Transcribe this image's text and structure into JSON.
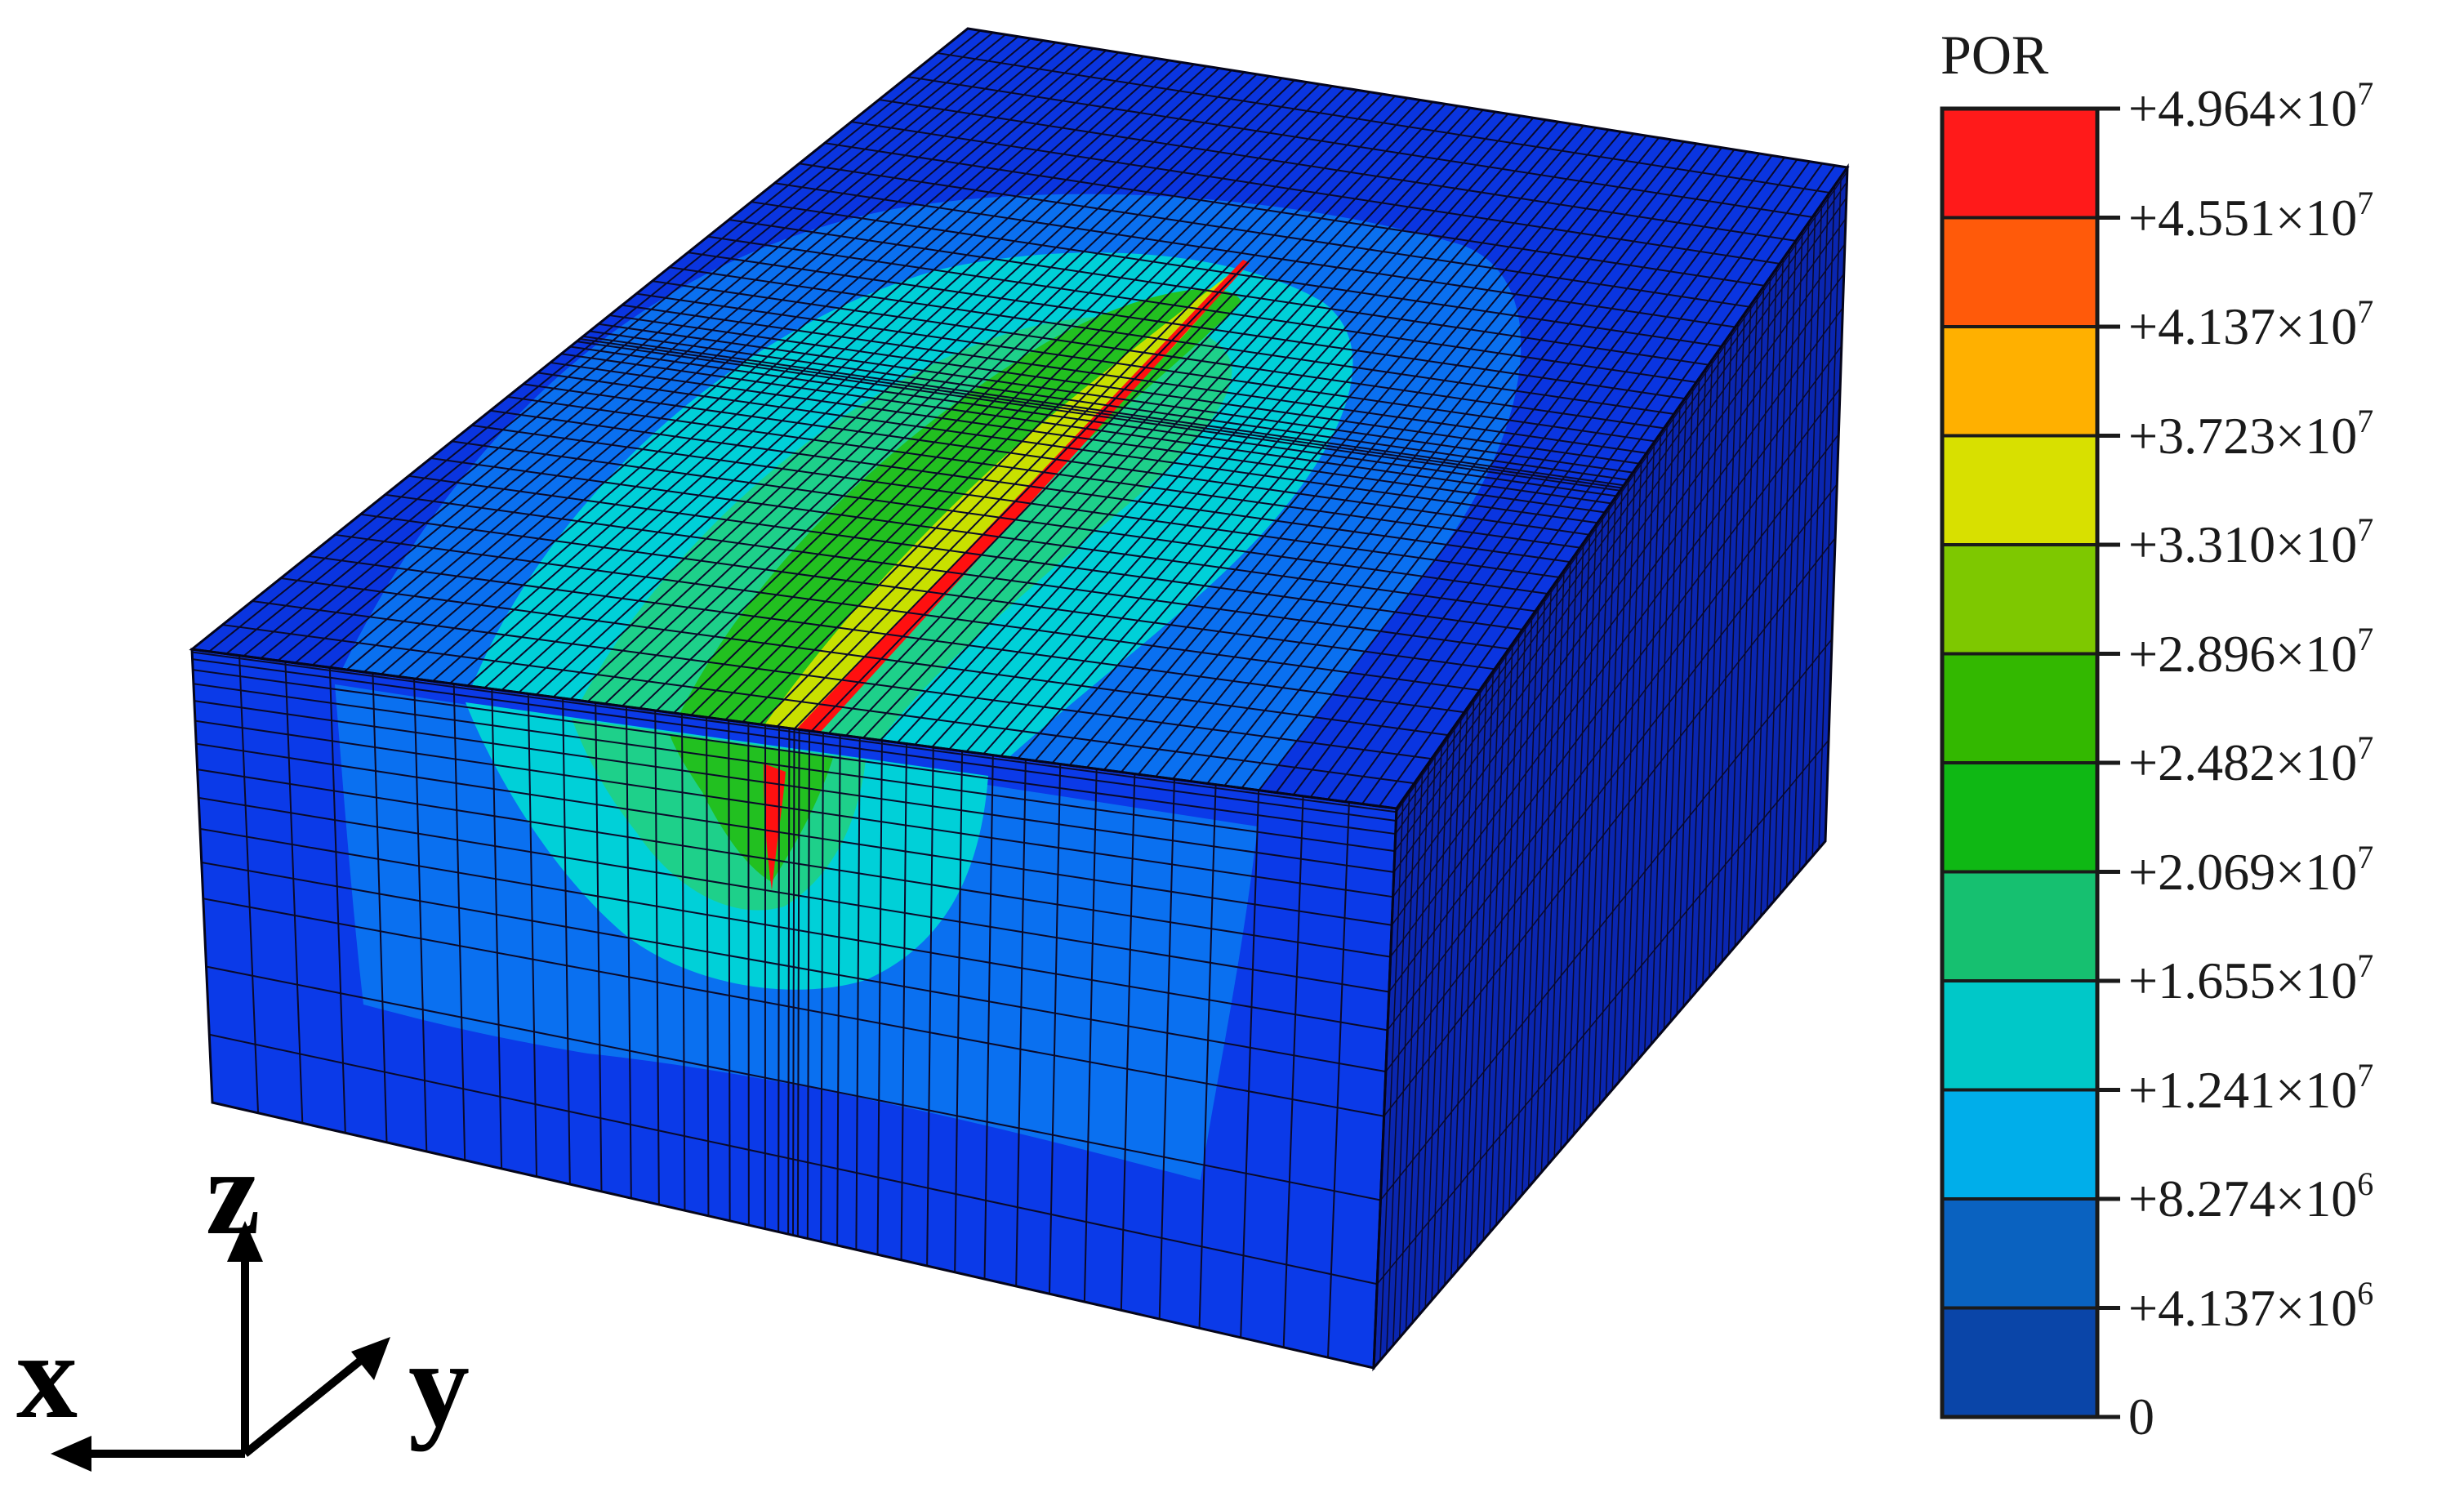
{
  "legend": {
    "title": "POR",
    "entries": [
      {
        "mantissa": "+4.964",
        "times": "×10",
        "exp": "7"
      },
      {
        "mantissa": "+4.551",
        "times": "×10",
        "exp": "7"
      },
      {
        "mantissa": "+4.137",
        "times": "×10",
        "exp": "7"
      },
      {
        "mantissa": "+3.723",
        "times": "×10",
        "exp": "7"
      },
      {
        "mantissa": "+3.310",
        "times": "×10",
        "exp": "7"
      },
      {
        "mantissa": "+2.896",
        "times": "×10",
        "exp": "7"
      },
      {
        "mantissa": "+2.482",
        "times": "×10",
        "exp": "7"
      },
      {
        "mantissa": "+2.069",
        "times": "×10",
        "exp": "7"
      },
      {
        "mantissa": "+1.655",
        "times": "×10",
        "exp": "7"
      },
      {
        "mantissa": "+1.241",
        "times": "×10",
        "exp": "7"
      },
      {
        "mantissa": "+8.274",
        "times": "×10",
        "exp": "6"
      },
      {
        "mantissa": "+4.137",
        "times": "×10",
        "exp": "6"
      },
      {
        "mantissa": "0",
        "times": "",
        "exp": ""
      }
    ],
    "colors": [
      "#ff1a1a",
      "#ff5a0a",
      "#ffb000",
      "#d8e000",
      "#7ec800",
      "#33b800",
      "#0fb814",
      "#16c070",
      "#00c8c8",
      "#00aeea",
      "#0a62c0",
      "#0a45a8"
    ]
  },
  "axes": {
    "z": "z",
    "x": "x",
    "y": "y"
  },
  "model_colors": {
    "background_blue": "#0a2fd8",
    "top_face": "#0a35e0",
    "front_face": "#0b3ae8",
    "side_face": "#0a26b0",
    "zone_light_blue": "#0a70f0",
    "zone_cyan": "#00d0d8",
    "zone_green_light": "#1ed08a",
    "zone_green": "#22c020",
    "zone_yellow": "#c8e000",
    "zone_red": "#ff1010",
    "mesh_line": "#0a0a2a"
  }
}
